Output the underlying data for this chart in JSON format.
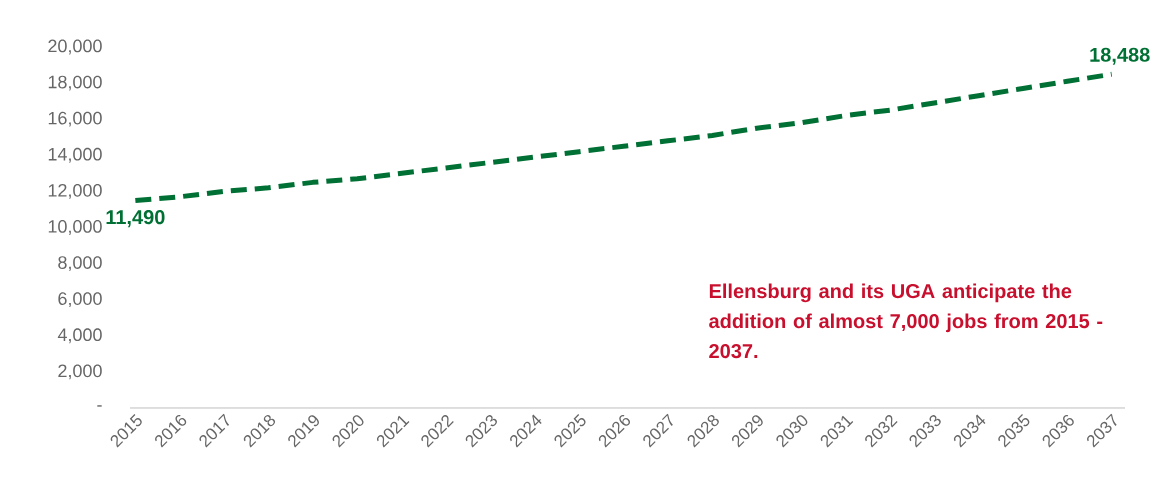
{
  "chart_data": {
    "type": "line",
    "categories": [
      "2015",
      "2016",
      "2017",
      "2018",
      "2019",
      "2020",
      "2021",
      "2022",
      "2023",
      "2024",
      "2025",
      "2026",
      "2027",
      "2028",
      "2029",
      "2030",
      "2031",
      "2032",
      "2033",
      "2034",
      "2035",
      "2036",
      "2037"
    ],
    "series": [
      {
        "color": "#007034",
        "values": [
          11490,
          11700,
          12000,
          12200,
          12500,
          12700,
          13000,
          13300,
          13600,
          13900,
          14200,
          14500,
          14800,
          15100,
          15500,
          15800,
          16200,
          16500,
          16900,
          17300,
          17700,
          18100,
          18488
        ],
        "value_labels": [
          "11,490",
          null,
          null,
          null,
          null,
          null,
          null,
          null,
          null,
          null,
          null,
          null,
          null,
          null,
          null,
          null,
          null,
          null,
          null,
          null,
          null,
          null,
          "18,488"
        ]
      }
    ],
    "ylim": [
      0,
      20000
    ],
    "yticks": [
      {
        "value": 0,
        "label": "-"
      },
      {
        "value": 2000,
        "label": "2,000"
      },
      {
        "value": 4000,
        "label": "4,000"
      },
      {
        "value": 6000,
        "label": "6,000"
      },
      {
        "value": 8000,
        "label": "8,000"
      },
      {
        "value": 10000,
        "label": "10,000"
      },
      {
        "value": 12000,
        "label": "12,000"
      },
      {
        "value": 14000,
        "label": "14,000"
      },
      {
        "value": 16000,
        "label": "16,000"
      },
      {
        "value": 18000,
        "label": "18,000"
      },
      {
        "value": 20000,
        "label": "20,000"
      }
    ],
    "line_style": "dashed",
    "marker": "none",
    "annotations": [
      "Ellensburg and its UGA anticipate the addition of almost 7,000 jobs from 2015 - 2037."
    ]
  }
}
